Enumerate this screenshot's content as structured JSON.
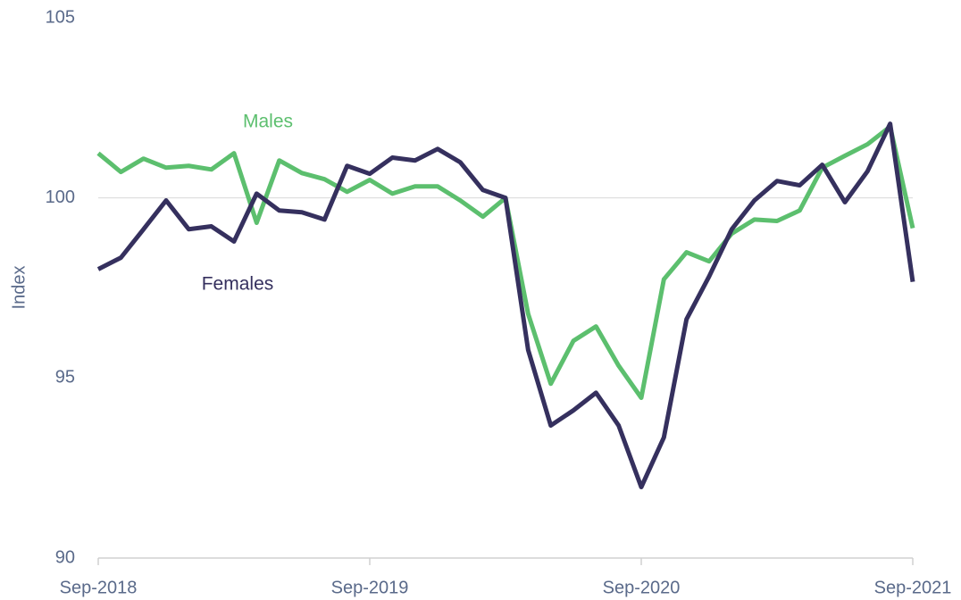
{
  "chart_data": {
    "type": "line",
    "y_label": "Index",
    "categories": [
      "Sep-2018",
      null,
      null,
      null,
      null,
      null,
      null,
      null,
      null,
      null,
      null,
      null,
      "Sep-2019",
      null,
      null,
      null,
      null,
      null,
      null,
      null,
      null,
      null,
      null,
      null,
      "Sep-2020",
      null,
      null,
      null,
      null,
      null,
      null,
      null,
      null,
      null,
      null,
      null,
      "Sep-2021"
    ],
    "series": [
      {
        "name": "Males",
        "color": "#5cbf6e",
        "values": [
          101.24,
          100.72,
          101.09,
          100.84,
          100.89,
          100.79,
          101.24,
          99.31,
          101.04,
          100.69,
          100.52,
          100.17,
          100.5,
          100.12,
          100.32,
          100.32,
          99.93,
          99.48,
          100,
          96.78,
          94.84,
          96.03,
          96.43,
          95.34,
          94.45,
          97.74,
          98.49,
          98.24,
          99.01,
          99.4,
          99.36,
          99.65,
          100.84,
          101.17,
          101.49,
          101.98,
          99.16
        ]
      },
      {
        "name": "Females",
        "color": "#35305e",
        "values": [
          98.02,
          98.34,
          99.13,
          99.93,
          99.13,
          99.21,
          98.79,
          100.12,
          99.65,
          99.6,
          99.4,
          100.89,
          100.67,
          101.12,
          101.04,
          101.36,
          100.99,
          100.22,
          100,
          95.78,
          93.68,
          94.1,
          94.59,
          93.68,
          91.97,
          93.35,
          96.63,
          97.82,
          99.13,
          99.93,
          100.47,
          100.35,
          100.92,
          99.88,
          100.74,
          102.06,
          97.67
        ]
      }
    ],
    "ylim": [
      90,
      105
    ],
    "yticks": [
      90,
      95,
      100,
      105
    ],
    "hline": 100
  }
}
